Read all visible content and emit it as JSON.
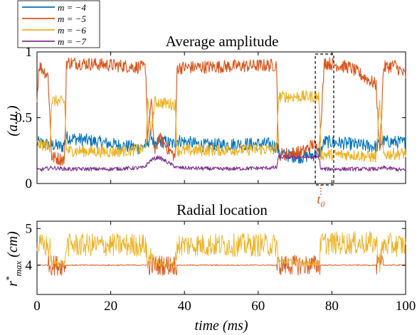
{
  "chart_data": [
    {
      "type": "line",
      "title": "Average amplitude",
      "ylabel": "(a.u.)",
      "xlabel": "",
      "xlim": [
        0,
        100
      ],
      "ylim": [
        0,
        1
      ],
      "yticks": [
        "0",
        "0.5",
        "1"
      ],
      "grid": false,
      "legend_position": "top-left, above plot",
      "annotation": {
        "label": "t",
        "subscript": "0",
        "x_range": [
          75.5,
          80.5
        ]
      },
      "series": [
        {
          "name": "m = −4",
          "color": "#0072bd",
          "segments": [
            [
              0,
              0.31
            ],
            [
              7,
              0.28
            ],
            [
              8,
              0.35
            ],
            [
              13,
              0.33
            ],
            [
              20,
              0.3
            ],
            [
              28,
              0.27
            ],
            [
              30,
              0.3
            ],
            [
              31,
              0.38
            ],
            [
              32,
              0.26
            ],
            [
              33,
              0.33
            ],
            [
              37,
              0.3
            ],
            [
              38,
              0.33
            ],
            [
              45,
              0.29
            ],
            [
              55,
              0.3
            ],
            [
              63,
              0.3
            ],
            [
              65,
              0.28
            ],
            [
              66,
              0.22
            ],
            [
              72,
              0.2
            ],
            [
              75,
              0.22
            ],
            [
              77,
              0.24
            ],
            [
              78,
              0.32
            ],
            [
              85,
              0.3
            ],
            [
              92,
              0.28
            ],
            [
              94,
              0.32
            ],
            [
              100,
              0.31
            ]
          ]
        },
        {
          "name": "m = −5",
          "color": "#d95319",
          "segments": [
            [
              0,
              0.62
            ],
            [
              0.5,
              0.9
            ],
            [
              3,
              0.82
            ],
            [
              4,
              0.2
            ],
            [
              7.5,
              0.18
            ],
            [
              8,
              0.92
            ],
            [
              20,
              0.9
            ],
            [
              29.5,
              0.88
            ],
            [
              30,
              0.35
            ],
            [
              31,
              0.62
            ],
            [
              32,
              0.22
            ],
            [
              33,
              0.35
            ],
            [
              37.5,
              0.2
            ],
            [
              38,
              0.88
            ],
            [
              65,
              0.9
            ],
            [
              65.5,
              0.22
            ],
            [
              72,
              0.24
            ],
            [
              75,
              0.3
            ],
            [
              76.5,
              0.25
            ],
            [
              78,
              0.92
            ],
            [
              85,
              0.88
            ],
            [
              92,
              0.75
            ],
            [
              93,
              0.23
            ],
            [
              94,
              0.88
            ],
            [
              97,
              0.9
            ],
            [
              100,
              0.82
            ]
          ]
        },
        {
          "name": "m = −6",
          "color": "#edb120",
          "segments": [
            [
              0,
              0.3
            ],
            [
              3.5,
              0.28
            ],
            [
              4,
              0.63
            ],
            [
              7.5,
              0.62
            ],
            [
              8,
              0.25
            ],
            [
              20,
              0.24
            ],
            [
              29.5,
              0.26
            ],
            [
              30,
              0.62
            ],
            [
              31,
              0.4
            ],
            [
              32,
              0.62
            ],
            [
              37.5,
              0.6
            ],
            [
              38,
              0.25
            ],
            [
              65,
              0.26
            ],
            [
              65.5,
              0.66
            ],
            [
              76.5,
              0.66
            ],
            [
              77,
              0.22
            ],
            [
              85,
              0.22
            ],
            [
              92,
              0.2
            ],
            [
              93,
              0.6
            ],
            [
              94,
              0.22
            ],
            [
              100,
              0.23
            ]
          ]
        },
        {
          "name": "m = −7",
          "color": "#7e2f8e",
          "segments": [
            [
              0,
              0.1
            ],
            [
              4,
              0.12
            ],
            [
              8,
              0.11
            ],
            [
              20,
              0.11
            ],
            [
              29,
              0.12
            ],
            [
              31,
              0.18
            ],
            [
              33,
              0.2
            ],
            [
              38,
              0.12
            ],
            [
              50,
              0.11
            ],
            [
              65,
              0.12
            ],
            [
              65.5,
              0.2
            ],
            [
              76.5,
              0.2
            ],
            [
              77,
              0.11
            ],
            [
              85,
              0.11
            ],
            [
              93,
              0.11
            ],
            [
              94,
              0.12
            ],
            [
              100,
              0.1
            ]
          ]
        }
      ]
    },
    {
      "type": "line",
      "title": "Radial location",
      "ylabel": "r*max (cm)",
      "xlabel": "time (ms)",
      "xlim": [
        0,
        100
      ],
      "ylim": [
        3.2,
        5.2
      ],
      "yticks": [
        "4",
        "5"
      ],
      "xticks": [
        "0",
        "20",
        "40",
        "60",
        "80",
        "100"
      ],
      "grid": false,
      "series": [
        {
          "name": "m = −5",
          "color": "#d95319",
          "segments": [
            [
              0,
              4.0
            ],
            [
              100,
              4.0
            ]
          ]
        },
        {
          "name": "m = −6",
          "color": "#edb120",
          "segments": [
            [
              0,
              4.55
            ],
            [
              3.5,
              4.5
            ],
            [
              4,
              4.05
            ],
            [
              7.5,
              4.05
            ],
            [
              8,
              4.55
            ],
            [
              29.5,
              4.55
            ],
            [
              30,
              4.0
            ],
            [
              31,
              4.4
            ],
            [
              32,
              4.05
            ],
            [
              37.5,
              4.0
            ],
            [
              38,
              4.55
            ],
            [
              65,
              4.55
            ],
            [
              65.5,
              4.1
            ],
            [
              76.5,
              4.05
            ],
            [
              77,
              4.6
            ],
            [
              92,
              4.6
            ],
            [
              93,
              4.1
            ],
            [
              94,
              4.55
            ],
            [
              100,
              4.55
            ]
          ]
        }
      ]
    }
  ]
}
